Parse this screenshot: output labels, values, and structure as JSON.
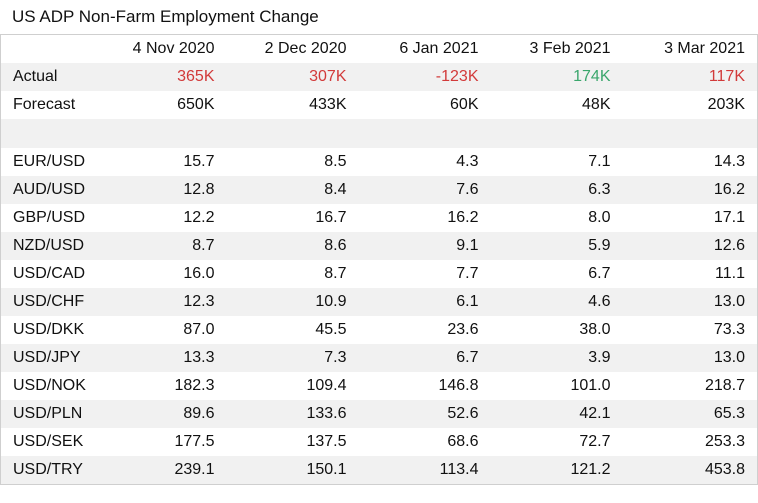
{
  "title": "US ADP Non-Farm Employment Change",
  "columns": [
    "4 Nov 2020",
    "2 Dec 2020",
    "6 Jan 2021",
    "3 Feb 2021",
    "3 Mar 2021"
  ],
  "actual": {
    "label": "Actual",
    "values": [
      "365K",
      "307K",
      "-123K",
      "174K",
      "117K"
    ],
    "status": [
      "miss",
      "miss",
      "miss",
      "beat",
      "miss"
    ],
    "colors": {
      "miss": "#d23a3a",
      "beat": "#3aa66c"
    }
  },
  "forecast": {
    "label": "Forecast",
    "values": [
      "650K",
      "433K",
      "60K",
      "48K",
      "203K"
    ]
  },
  "pairs": [
    {
      "pair": "EUR/USD",
      "values": [
        "15.7",
        "8.5",
        "4.3",
        "7.1",
        "14.3"
      ]
    },
    {
      "pair": "AUD/USD",
      "values": [
        "12.8",
        "8.4",
        "7.6",
        "6.3",
        "16.2"
      ]
    },
    {
      "pair": "GBP/USD",
      "values": [
        "12.2",
        "16.7",
        "16.2",
        "8.0",
        "17.1"
      ]
    },
    {
      "pair": "NZD/USD",
      "values": [
        "8.7",
        "8.6",
        "9.1",
        "5.9",
        "12.6"
      ]
    },
    {
      "pair": "USD/CAD",
      "values": [
        "16.0",
        "8.7",
        "7.7",
        "6.7",
        "11.1"
      ]
    },
    {
      "pair": "USD/CHF",
      "values": [
        "12.3",
        "10.9",
        "6.1",
        "4.6",
        "13.0"
      ]
    },
    {
      "pair": "USD/DKK",
      "values": [
        "87.0",
        "45.5",
        "23.6",
        "38.0",
        "73.3"
      ]
    },
    {
      "pair": "USD/JPY",
      "values": [
        "13.3",
        "7.3",
        "6.7",
        "3.9",
        "13.0"
      ]
    },
    {
      "pair": "USD/NOK",
      "values": [
        "182.3",
        "109.4",
        "146.8",
        "101.0",
        "218.7"
      ]
    },
    {
      "pair": "USD/PLN",
      "values": [
        "89.6",
        "133.6",
        "52.6",
        "42.1",
        "65.3"
      ]
    },
    {
      "pair": "USD/SEK",
      "values": [
        "177.5",
        "137.5",
        "68.6",
        "72.7",
        "253.3"
      ]
    },
    {
      "pair": "USD/TRY",
      "values": [
        "239.1",
        "150.1",
        "113.4",
        "121.2",
        "453.8"
      ]
    }
  ]
}
